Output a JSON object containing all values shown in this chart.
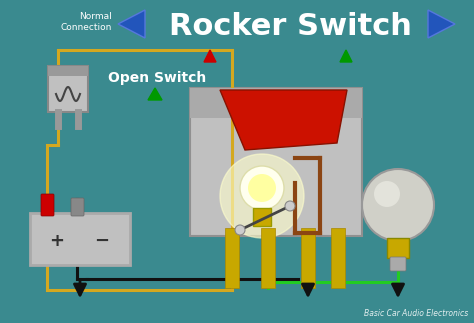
{
  "bg_color": "#3a8a8f",
  "title": "Rocker Switch",
  "title_fontsize": 24,
  "title_color": "white",
  "subtitle": "Open Switch",
  "subtitle_color": "white",
  "subtitle_fontsize": 11,
  "normal_connection_text": "Normal\nConnection",
  "normal_connection_color": "white",
  "watermark": "Basic Car Audio Electronics",
  "watermark_color": "white",
  "wire_yellow": "#d4a820",
  "wire_green": "#22cc22",
  "wire_black": "#111111",
  "nav_arrow_color": "#2255bb",
  "green_arrow_color": "#009900"
}
